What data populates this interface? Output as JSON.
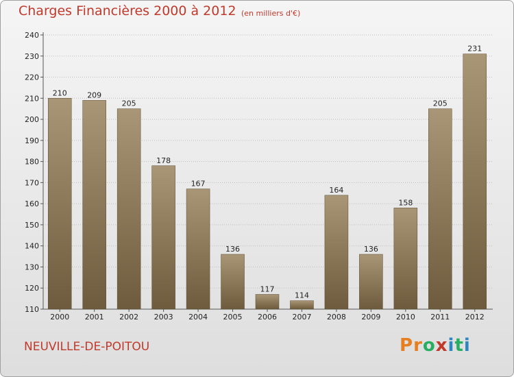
{
  "header": {
    "title": "Charges Financières 2000 à 2012",
    "subtitle": "(en milliers d'€)"
  },
  "footer": {
    "commune": "NEUVILLE-DE-POITOU",
    "logo": [
      "P",
      "r",
      "o",
      "x",
      "i",
      "t",
      "i"
    ]
  },
  "colors": {
    "title": "#c0392b",
    "bar_top": "#a89676",
    "bar_bottom": "#6e5b3d",
    "logo": [
      "#e67e22",
      "#e67e22",
      "#27ae60",
      "#c0392b",
      "#2e86c1",
      "#27ae60",
      "#2e86c1"
    ]
  },
  "chart_data": {
    "type": "bar",
    "categories": [
      "2000",
      "2001",
      "2002",
      "2003",
      "2004",
      "2005",
      "2006",
      "2007",
      "2008",
      "2009",
      "2010",
      "2011",
      "2012"
    ],
    "values": [
      210,
      209,
      205,
      178,
      167,
      136,
      117,
      114,
      164,
      136,
      158,
      205,
      231
    ],
    "title": "Charges Financières 2000 à 2012",
    "ylabel": "",
    "xlabel": "",
    "ylim": [
      110,
      240
    ],
    "yticks": [
      110,
      120,
      130,
      140,
      150,
      160,
      170,
      180,
      190,
      200,
      210,
      220,
      230,
      240
    ],
    "grid": true,
    "data_labels": true
  }
}
